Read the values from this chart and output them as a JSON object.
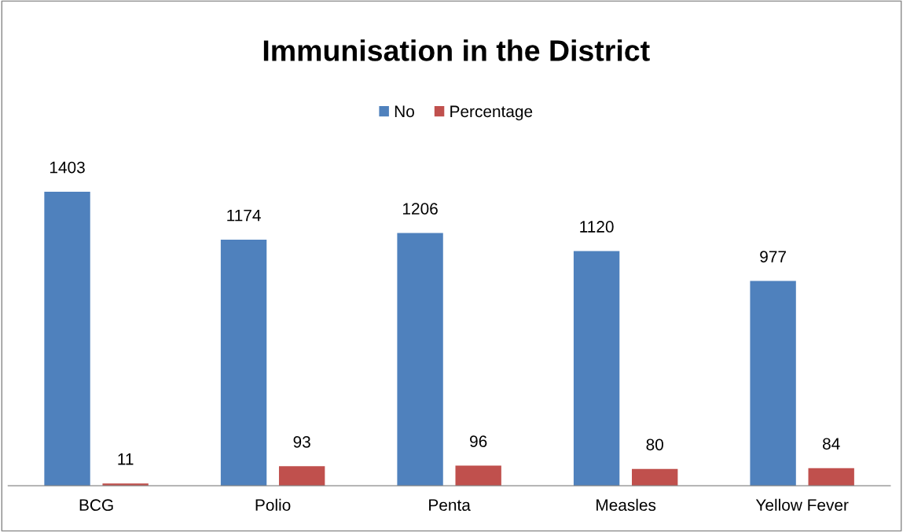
{
  "chart_data": {
    "type": "bar",
    "title": "Immunisation in the District",
    "categories": [
      "BCG",
      "Polio",
      "Penta",
      "Measles",
      "Yellow Fever"
    ],
    "series": [
      {
        "name": "No",
        "color": "#4f81bd",
        "values": [
          1403,
          1174,
          1206,
          1120,
          977
        ]
      },
      {
        "name": "Percentage",
        "color": "#c0504d",
        "values": [
          11,
          93,
          96,
          80,
          84
        ]
      }
    ],
    "data_labels": true,
    "legend": "top",
    "grid": false,
    "tick_labels": "x"
  }
}
